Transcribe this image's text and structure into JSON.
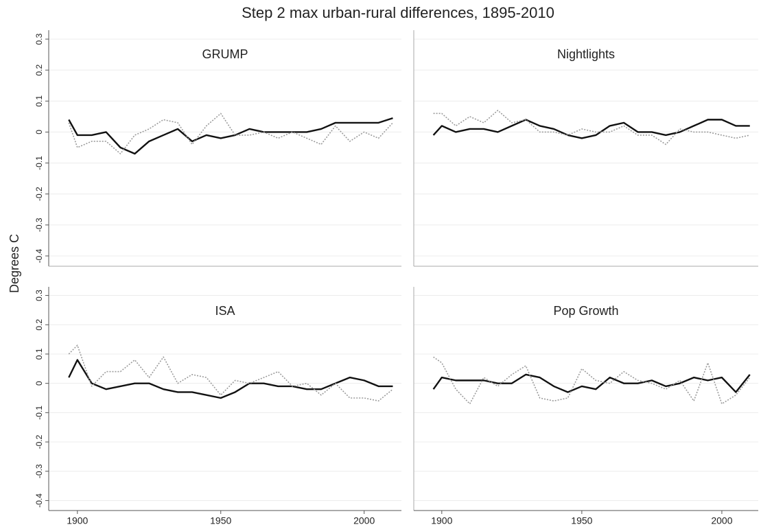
{
  "title": "Step 2 max urban-rural differences, 1895-2010",
  "ylabel": "Degrees C",
  "chart_data": [
    {
      "type": "line",
      "title": "GRUMP",
      "x": [
        1897,
        1900,
        1905,
        1910,
        1915,
        1920,
        1925,
        1930,
        1935,
        1940,
        1945,
        1950,
        1955,
        1960,
        1965,
        1970,
        1975,
        1980,
        1985,
        1990,
        1995,
        2000,
        2005,
        2010
      ],
      "series": [
        {
          "color": "#111111",
          "values": [
            0.04,
            -0.01,
            -0.01,
            0.0,
            -0.05,
            -0.07,
            -0.03,
            -0.01,
            0.01,
            -0.03,
            -0.01,
            -0.02,
            -0.01,
            0.01,
            0.0,
            0.0,
            0.0,
            0.0,
            0.01,
            0.03,
            0.03,
            0.03,
            0.03,
            0.045
          ]
        },
        {
          "color": "#9a9a9a",
          "dashed": true,
          "values": [
            0.03,
            -0.05,
            -0.03,
            -0.03,
            -0.07,
            -0.01,
            0.01,
            0.04,
            0.03,
            -0.04,
            0.02,
            0.06,
            -0.01,
            -0.01,
            0.0,
            -0.02,
            0.0,
            -0.02,
            -0.04,
            0.02,
            -0.03,
            0.0,
            -0.02,
            0.03
          ]
        }
      ],
      "xlim": [
        1890,
        2013
      ],
      "ylim": [
        -0.42,
        0.32
      ],
      "yticks": [
        0.3,
        0.2,
        0.1,
        0,
        -0.1,
        -0.2,
        -0.3,
        -0.4
      ],
      "grid": true
    },
    {
      "type": "line",
      "title": "Nightlights",
      "x": [
        1897,
        1900,
        1905,
        1910,
        1915,
        1920,
        1925,
        1930,
        1935,
        1940,
        1945,
        1950,
        1955,
        1960,
        1965,
        1970,
        1975,
        1980,
        1985,
        1990,
        1995,
        2000,
        2005,
        2010
      ],
      "series": [
        {
          "color": "#111111",
          "values": [
            -0.01,
            0.02,
            0.0,
            0.01,
            0.01,
            0.0,
            0.02,
            0.04,
            0.02,
            0.01,
            -0.01,
            -0.02,
            -0.01,
            0.02,
            0.03,
            0.0,
            0.0,
            -0.01,
            0.0,
            0.02,
            0.04,
            0.04,
            0.02,
            0.02
          ]
        },
        {
          "color": "#9a9a9a",
          "dashed": true,
          "values": [
            0.06,
            0.06,
            0.02,
            0.05,
            0.03,
            0.07,
            0.03,
            0.04,
            0.0,
            0.0,
            -0.01,
            0.01,
            0.0,
            0.0,
            0.02,
            -0.01,
            -0.01,
            -0.04,
            0.01,
            0.0,
            0.0,
            -0.01,
            -0.02,
            -0.01
          ]
        }
      ],
      "xlim": [
        1890,
        2013
      ],
      "ylim": [
        -0.42,
        0.32
      ],
      "yticks": [
        0.3,
        0.2,
        0.1,
        0,
        -0.1,
        -0.2,
        -0.3,
        -0.4
      ],
      "grid": true
    },
    {
      "type": "line",
      "title": "ISA",
      "x": [
        1897,
        1900,
        1905,
        1910,
        1915,
        1920,
        1925,
        1930,
        1935,
        1940,
        1945,
        1950,
        1955,
        1960,
        1965,
        1970,
        1975,
        1980,
        1985,
        1990,
        1995,
        2000,
        2005,
        2010
      ],
      "series": [
        {
          "color": "#111111",
          "values": [
            0.02,
            0.08,
            0.0,
            -0.02,
            -0.01,
            0.0,
            0.0,
            -0.02,
            -0.03,
            -0.03,
            -0.04,
            -0.05,
            -0.03,
            0.0,
            0.0,
            -0.01,
            -0.01,
            -0.02,
            -0.02,
            0.0,
            0.02,
            0.01,
            -0.01,
            -0.01
          ]
        },
        {
          "color": "#9a9a9a",
          "dashed": true,
          "values": [
            0.1,
            0.13,
            -0.01,
            0.04,
            0.04,
            0.08,
            0.02,
            0.09,
            0.0,
            0.03,
            0.02,
            -0.04,
            0.01,
            0.0,
            0.02,
            0.04,
            -0.01,
            0.0,
            -0.04,
            0.0,
            -0.05,
            -0.05,
            -0.06,
            -0.02
          ]
        }
      ],
      "xlim": [
        1890,
        2013
      ],
      "ylim": [
        -0.42,
        0.32
      ],
      "xticks": [
        1900,
        1950,
        2000
      ],
      "yticks": [
        0.3,
        0.2,
        0.1,
        0,
        -0.1,
        -0.2,
        -0.3,
        -0.4
      ],
      "grid": true
    },
    {
      "type": "line",
      "title": "Pop Growth",
      "x": [
        1897,
        1900,
        1905,
        1910,
        1915,
        1920,
        1925,
        1930,
        1935,
        1940,
        1945,
        1950,
        1955,
        1960,
        1965,
        1970,
        1975,
        1980,
        1985,
        1990,
        1995,
        2000,
        2005,
        2010
      ],
      "series": [
        {
          "color": "#111111",
          "values": [
            -0.02,
            0.02,
            0.01,
            0.01,
            0.01,
            0.0,
            0.0,
            0.03,
            0.02,
            -0.01,
            -0.03,
            -0.01,
            -0.02,
            0.02,
            0.0,
            0.0,
            0.01,
            -0.01,
            0.0,
            0.02,
            0.01,
            0.02,
            -0.03,
            0.03
          ]
        },
        {
          "color": "#9a9a9a",
          "dashed": true,
          "values": [
            0.09,
            0.07,
            -0.02,
            -0.07,
            0.02,
            -0.01,
            0.03,
            0.06,
            -0.05,
            -0.06,
            -0.05,
            0.05,
            0.01,
            0.0,
            0.04,
            0.01,
            0.0,
            -0.02,
            0.01,
            -0.06,
            0.07,
            -0.07,
            -0.04,
            0.02
          ]
        }
      ],
      "xlim": [
        1890,
        2013
      ],
      "ylim": [
        -0.42,
        0.32
      ],
      "xticks": [
        1900,
        1950,
        2000
      ],
      "yticks": [
        0.3,
        0.2,
        0.1,
        0,
        -0.1,
        -0.2,
        -0.3,
        -0.4
      ],
      "grid": true
    }
  ]
}
